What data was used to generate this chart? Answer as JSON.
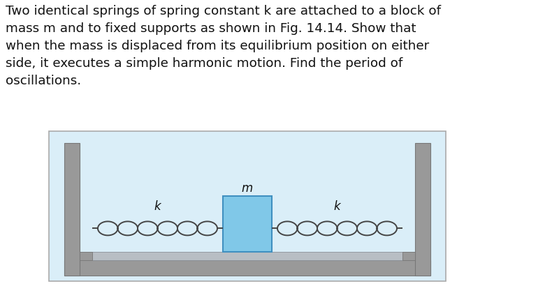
{
  "title_text": "Two identical springs of spring constant k are attached to a block of\nmass m and to fixed supports as shown in Fig. 14.14. Show that\nwhen the mass is displaced from its equilibrium position on either\nside, it executes a simple harmonic motion. Find the period of\noscillations.",
  "title_fontsize": 13.2,
  "title_color": "#111111",
  "bg_color": "#ffffff",
  "diagram_bg": "#daeef8",
  "diagram_border": "#aaaaaa",
  "wall_color": "#999999",
  "wall_dark": "#777777",
  "floor_color": "#aaaaaa",
  "block_face_color": "#80c8e8",
  "block_edge_color": "#4090c0",
  "spring_color": "#444444",
  "label_k": "k",
  "label_m": "m",
  "label_fontsize": 12
}
